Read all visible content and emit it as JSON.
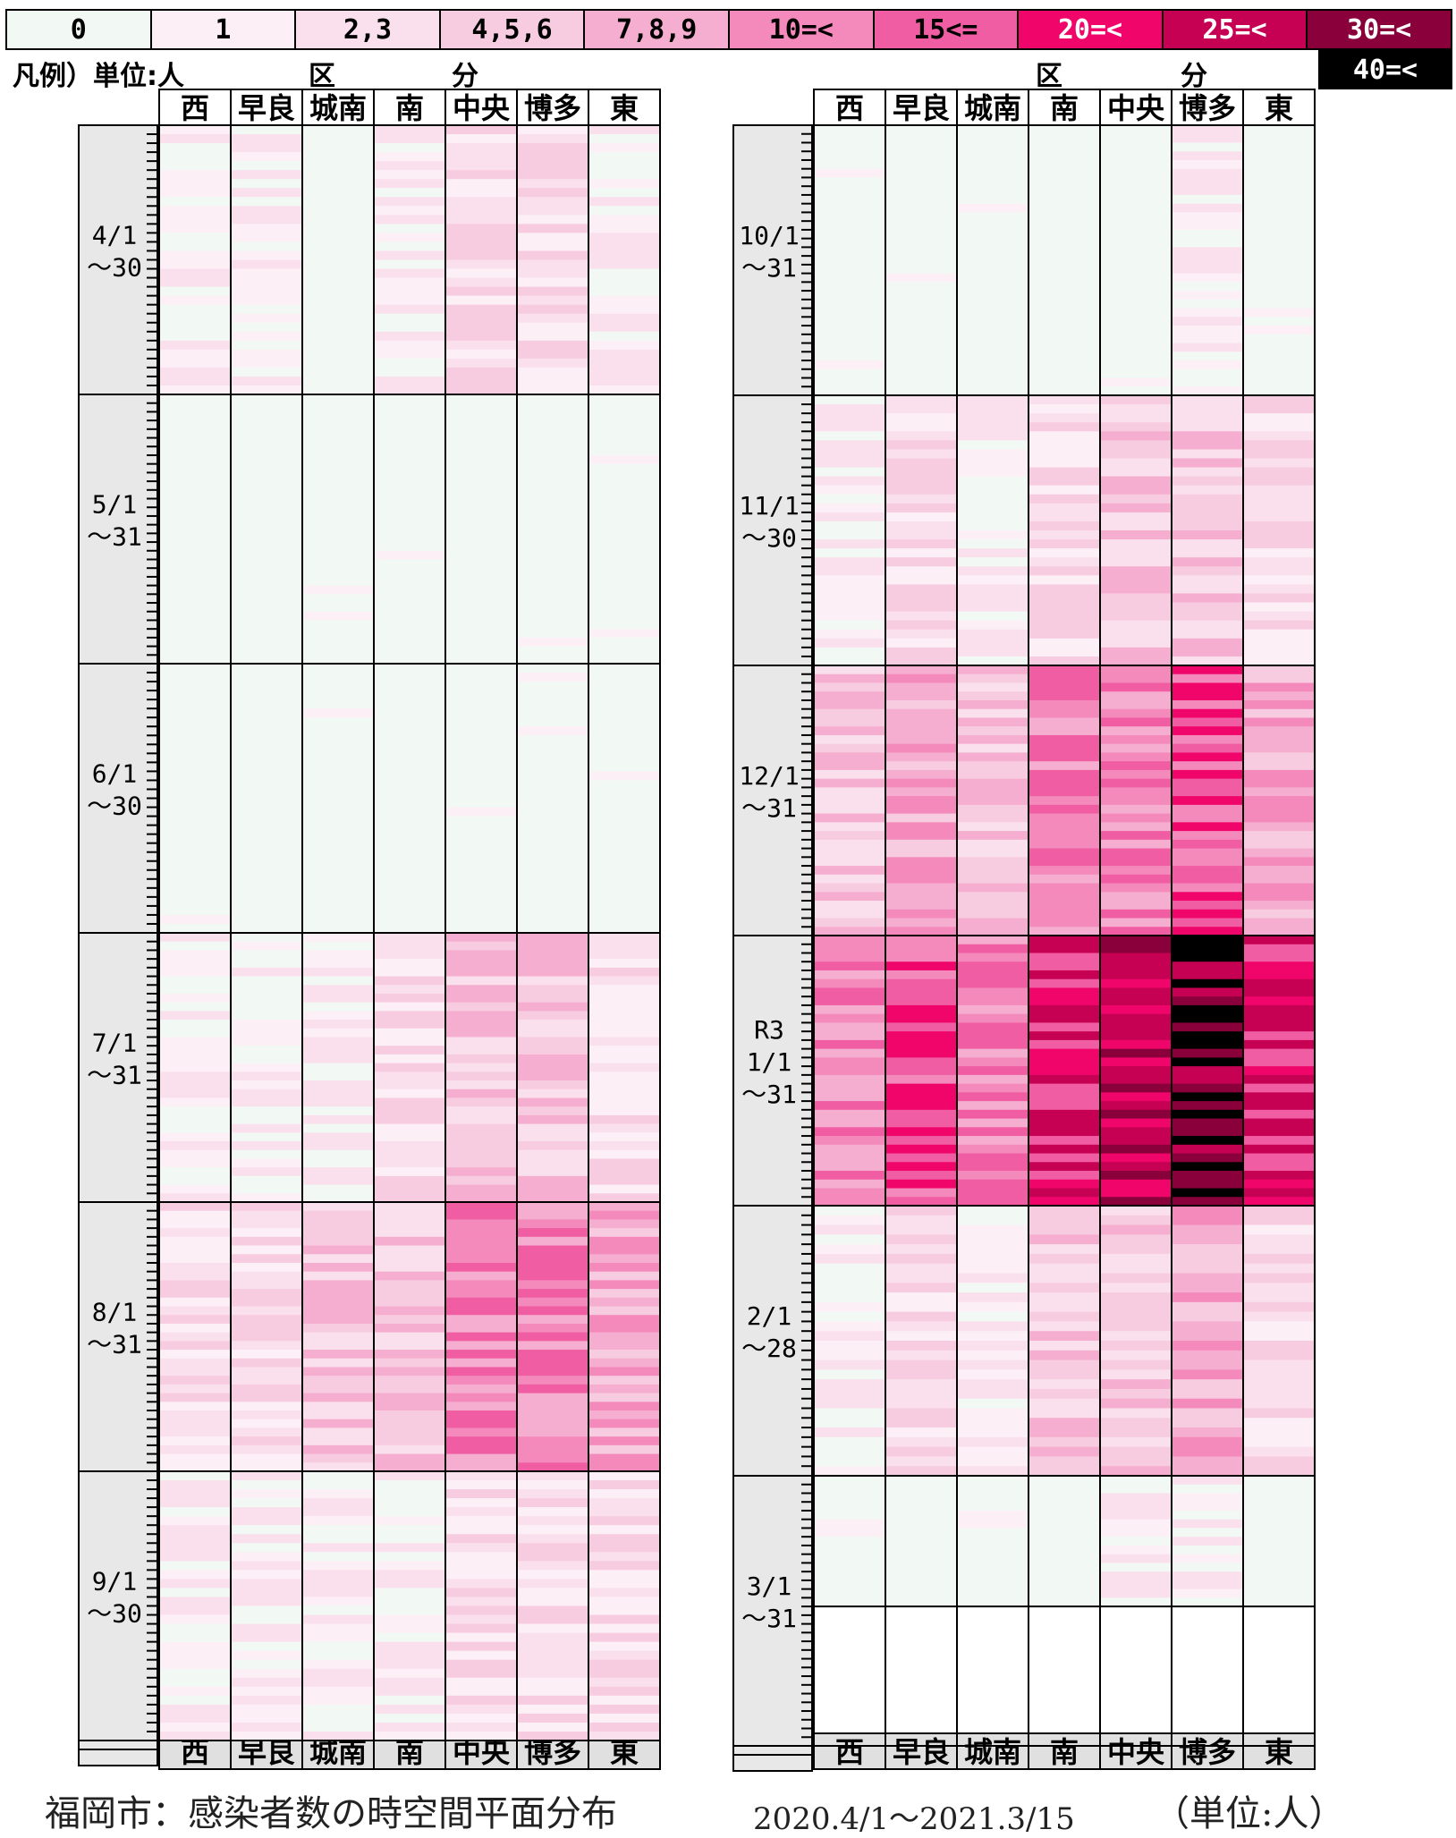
{
  "legend": {
    "title": "凡例）単位:人",
    "bins": [
      {
        "label": "0",
        "color": "#f2f9f4"
      },
      {
        "label": "1",
        "color": "#fcf0f6"
      },
      {
        "label": "2,3",
        "color": "#fae0ec"
      },
      {
        "label": "4,5,6",
        "color": "#f8cce0"
      },
      {
        "label": "7,8,9",
        "color": "#f5aecf"
      },
      {
        "label": "10=<",
        "color": "#f489bb"
      },
      {
        "label": "15<=",
        "color": "#f05da3"
      },
      {
        "label": "20=<",
        "color": "#f0056a"
      },
      {
        "label": "25=<",
        "color": "#c60052"
      },
      {
        "label": "30=<",
        "color": "#8a003a"
      },
      {
        "label": "40=<",
        "color": "#000000"
      }
    ]
  },
  "section_labels": [
    "区",
    "分"
  ],
  "districts": [
    "西",
    "早良",
    "城南",
    "南",
    "中央",
    "博多",
    "東"
  ],
  "footer": {
    "title": "福岡市：感染者数の時空間平面分布",
    "range": "2020.4/1〜2021.3/15",
    "unit": "（単位:人）"
  },
  "chart_data": {
    "type": "heatmap",
    "title": "福岡市：感染者数の時空間平面分布",
    "period": "2020.4/1〜2021.3/15",
    "unit": "人",
    "districts": [
      "西",
      "早良",
      "城南",
      "南",
      "中央",
      "博多",
      "東"
    ],
    "value_bins": [
      "0",
      "1",
      "2,3",
      "4,5,6",
      "7,8,9",
      "10=<",
      "15<=",
      "20=<",
      "25=<",
      "30=<",
      "40=<"
    ],
    "left_panel": {
      "months": [
        {
          "label": [
            "4/1",
            "〜30"
          ],
          "days": 30
        },
        {
          "label": [
            "5/1",
            "〜31"
          ],
          "days": 31
        },
        {
          "label": [
            "6/1",
            "〜30"
          ],
          "days": 30
        },
        {
          "label": [
            "7/1",
            "〜31"
          ],
          "days": 31
        },
        {
          "label": [
            "8/1",
            "〜31"
          ],
          "days": 31
        },
        {
          "label": [
            "9/1",
            "〜30"
          ],
          "days": 30
        }
      ]
    },
    "right_panel": {
      "months": [
        {
          "label": [
            "10/1",
            "〜31"
          ],
          "days": 31
        },
        {
          "label": [
            "11/1",
            "〜30"
          ],
          "days": 30
        },
        {
          "label": [
            "12/1",
            "〜31"
          ],
          "days": 31
        },
        {
          "label": [
            "R3",
            "1/1",
            "〜31"
          ],
          "days": 31
        },
        {
          "label": [
            "2/1",
            "〜28"
          ],
          "days": 28
        },
        {
          "label": [
            "3/1",
            "〜31"
          ],
          "days": 31,
          "data_days": 15
        }
      ]
    },
    "monthly_bin_profile": {
      "note": "approximate per-district dominant legend-bin level per month (0=0 … 10=40=<)",
      "2020-04": [
        1,
        1,
        0,
        1,
        2,
        2,
        1
      ],
      "2020-05": [
        0,
        0,
        0,
        0,
        0,
        0,
        0
      ],
      "2020-06": [
        0,
        0,
        0,
        0,
        0,
        0,
        0
      ],
      "2020-07": [
        1,
        1,
        1,
        2,
        3,
        3,
        2
      ],
      "2020-08": [
        2,
        2,
        3,
        3,
        5,
        5,
        4
      ],
      "2020-09": [
        1,
        1,
        1,
        1,
        2,
        2,
        2
      ],
      "2020-10": [
        0,
        0,
        0,
        0,
        0,
        1,
        0
      ],
      "2020-11": [
        1,
        2,
        1,
        2,
        3,
        3,
        2
      ],
      "2020-12": [
        3,
        4,
        3,
        5,
        5,
        6,
        4
      ],
      "2021-01": [
        5,
        6,
        5,
        7,
        8,
        9,
        7
      ],
      "2021-02": [
        1,
        2,
        1,
        3,
        3,
        4,
        2
      ],
      "2021-03": [
        0,
        0,
        0,
        0,
        1,
        1,
        0
      ]
    }
  }
}
